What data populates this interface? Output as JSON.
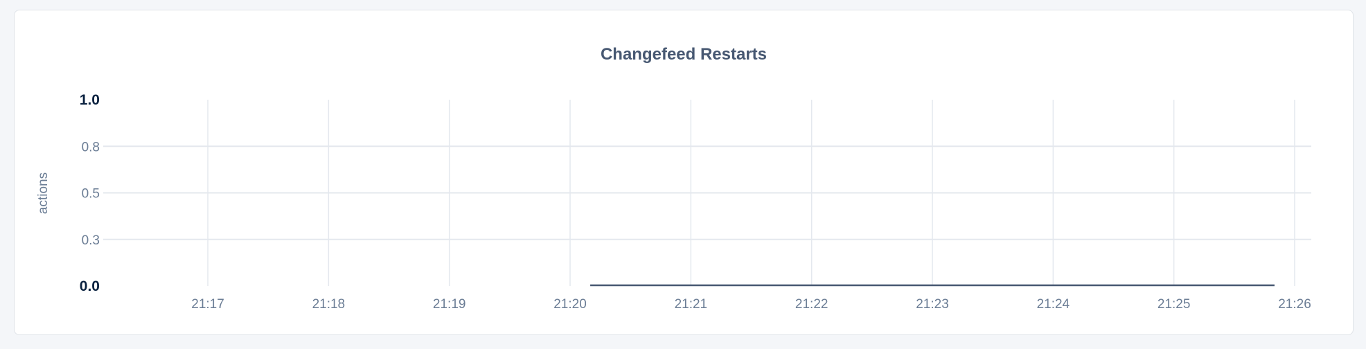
{
  "chart_data": {
    "type": "line",
    "title": "Changefeed Restarts",
    "ylabel": "actions",
    "xlabel": "",
    "ylim": [
      0,
      1.0
    ],
    "xlim": [
      "21:16:00",
      "21:26:00"
    ],
    "y_ticks": [
      "0.0",
      "0.3",
      "0.5",
      "0.8",
      "1.0"
    ],
    "y_tick_values": [
      0,
      0.25,
      0.5,
      0.75,
      1.0
    ],
    "x_ticks": [
      "21:17",
      "21:18",
      "21:19",
      "21:20",
      "21:21",
      "21:22",
      "21:23",
      "21:24",
      "21:25",
      "21:26"
    ],
    "grid": true,
    "series": [
      {
        "x": [
          "21:20:10",
          "21:25:50"
        ],
        "values": [
          0,
          0
        ],
        "color": "#475872"
      }
    ]
  },
  "colors": {
    "background": "#f4f6f9",
    "grid": "#e4e8ee",
    "tick_text": "#6b7d95",
    "bold_tick_text": "#0a2240",
    "title": "#475872"
  }
}
